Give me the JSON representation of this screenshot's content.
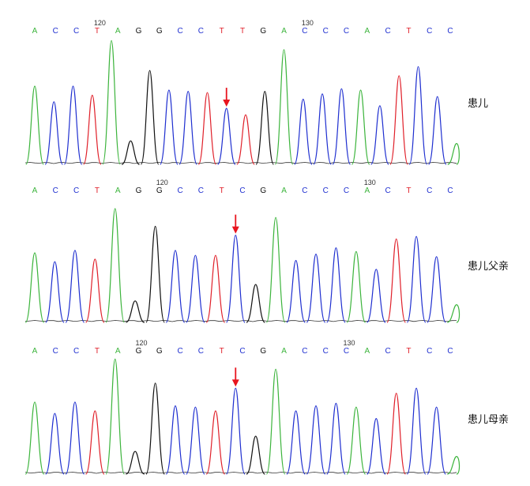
{
  "colors": {
    "A": "#3cb43c",
    "C": "#1f2fd0",
    "G": "#111111",
    "T": "#e0202a",
    "arrow": "#e8141e"
  },
  "chart_data": [
    {
      "type": "line",
      "label": "患儿",
      "bases": [
        "A",
        "C",
        "C",
        "T",
        "A",
        "G",
        "G",
        "C",
        "C",
        "T",
        "T",
        "G",
        "A",
        "C",
        "C",
        "C",
        "A",
        "C",
        "T",
        "C",
        "C"
      ],
      "positions": [
        {
          "label": "120",
          "index": 3
        },
        {
          "label": "130",
          "index": 13
        }
      ],
      "peaks": [
        {
          "base": "A",
          "height": 0.6
        },
        {
          "base": "C",
          "height": 0.48
        },
        {
          "base": "C",
          "height": 0.6
        },
        {
          "base": "T",
          "height": 0.53
        },
        {
          "base": "A",
          "height": 0.95
        },
        {
          "base": "G",
          "height": 0.18
        },
        {
          "base": "G",
          "height": 0.72
        },
        {
          "base": "C",
          "height": 0.57
        },
        {
          "base": "C",
          "height": 0.56
        },
        {
          "base": "T",
          "height": 0.55
        },
        {
          "base": "C",
          "height": 0.43
        },
        {
          "base": "T",
          "height": 0.38
        },
        {
          "base": "G",
          "height": 0.56
        },
        {
          "base": "A",
          "height": 0.88
        },
        {
          "base": "C",
          "height": 0.5
        },
        {
          "base": "C",
          "height": 0.54
        },
        {
          "base": "C",
          "height": 0.58
        },
        {
          "base": "A",
          "height": 0.57
        },
        {
          "base": "C",
          "height": 0.45
        },
        {
          "base": "T",
          "height": 0.68
        },
        {
          "base": "C",
          "height": 0.75
        },
        {
          "base": "C",
          "height": 0.52
        },
        {
          "base": "A",
          "height": 0.16
        }
      ],
      "arrow_index": 10
    },
    {
      "type": "line",
      "label": "患儿父亲",
      "bases": [
        "A",
        "C",
        "C",
        "T",
        "A",
        "G",
        "G",
        "C",
        "C",
        "T",
        "C",
        "G",
        "A",
        "C",
        "C",
        "C",
        "A",
        "C",
        "T",
        "C",
        "C"
      ],
      "positions": [
        {
          "label": "120",
          "index": 6
        },
        {
          "label": "130",
          "index": 16
        }
      ],
      "peaks": [
        {
          "base": "A",
          "height": 0.55
        },
        {
          "base": "C",
          "height": 0.48
        },
        {
          "base": "C",
          "height": 0.57
        },
        {
          "base": "T",
          "height": 0.5
        },
        {
          "base": "A",
          "height": 0.9
        },
        {
          "base": "G",
          "height": 0.17
        },
        {
          "base": "G",
          "height": 0.76
        },
        {
          "base": "C",
          "height": 0.57
        },
        {
          "base": "C",
          "height": 0.53
        },
        {
          "base": "T",
          "height": 0.53
        },
        {
          "base": "C",
          "height": 0.69
        },
        {
          "base": "G",
          "height": 0.3
        },
        {
          "base": "A",
          "height": 0.83
        },
        {
          "base": "C",
          "height": 0.49
        },
        {
          "base": "C",
          "height": 0.54
        },
        {
          "base": "C",
          "height": 0.59
        },
        {
          "base": "A",
          "height": 0.56
        },
        {
          "base": "C",
          "height": 0.42
        },
        {
          "base": "T",
          "height": 0.66
        },
        {
          "base": "C",
          "height": 0.68
        },
        {
          "base": "C",
          "height": 0.52
        },
        {
          "base": "A",
          "height": 0.14
        }
      ],
      "arrow_index": 10
    },
    {
      "type": "line",
      "label": "患儿母亲",
      "bases": [
        "A",
        "C",
        "C",
        "T",
        "A",
        "G",
        "G",
        "C",
        "C",
        "T",
        "C",
        "G",
        "A",
        "C",
        "C",
        "C",
        "A",
        "C",
        "T",
        "C",
        "C"
      ],
      "positions": [
        {
          "label": "120",
          "index": 5
        },
        {
          "label": "130",
          "index": 15
        }
      ],
      "peaks": [
        {
          "base": "A",
          "height": 0.57
        },
        {
          "base": "C",
          "height": 0.48
        },
        {
          "base": "C",
          "height": 0.57
        },
        {
          "base": "T",
          "height": 0.5
        },
        {
          "base": "A",
          "height": 0.91
        },
        {
          "base": "G",
          "height": 0.18
        },
        {
          "base": "G",
          "height": 0.72
        },
        {
          "base": "C",
          "height": 0.54
        },
        {
          "base": "C",
          "height": 0.53
        },
        {
          "base": "T",
          "height": 0.5
        },
        {
          "base": "C",
          "height": 0.68
        },
        {
          "base": "G",
          "height": 0.3
        },
        {
          "base": "A",
          "height": 0.83
        },
        {
          "base": "C",
          "height": 0.5
        },
        {
          "base": "C",
          "height": 0.54
        },
        {
          "base": "C",
          "height": 0.56
        },
        {
          "base": "A",
          "height": 0.53
        },
        {
          "base": "C",
          "height": 0.44
        },
        {
          "base": "T",
          "height": 0.64
        },
        {
          "base": "C",
          "height": 0.68
        },
        {
          "base": "C",
          "height": 0.53
        },
        {
          "base": "A",
          "height": 0.14
        }
      ],
      "arrow_index": 10
    }
  ]
}
